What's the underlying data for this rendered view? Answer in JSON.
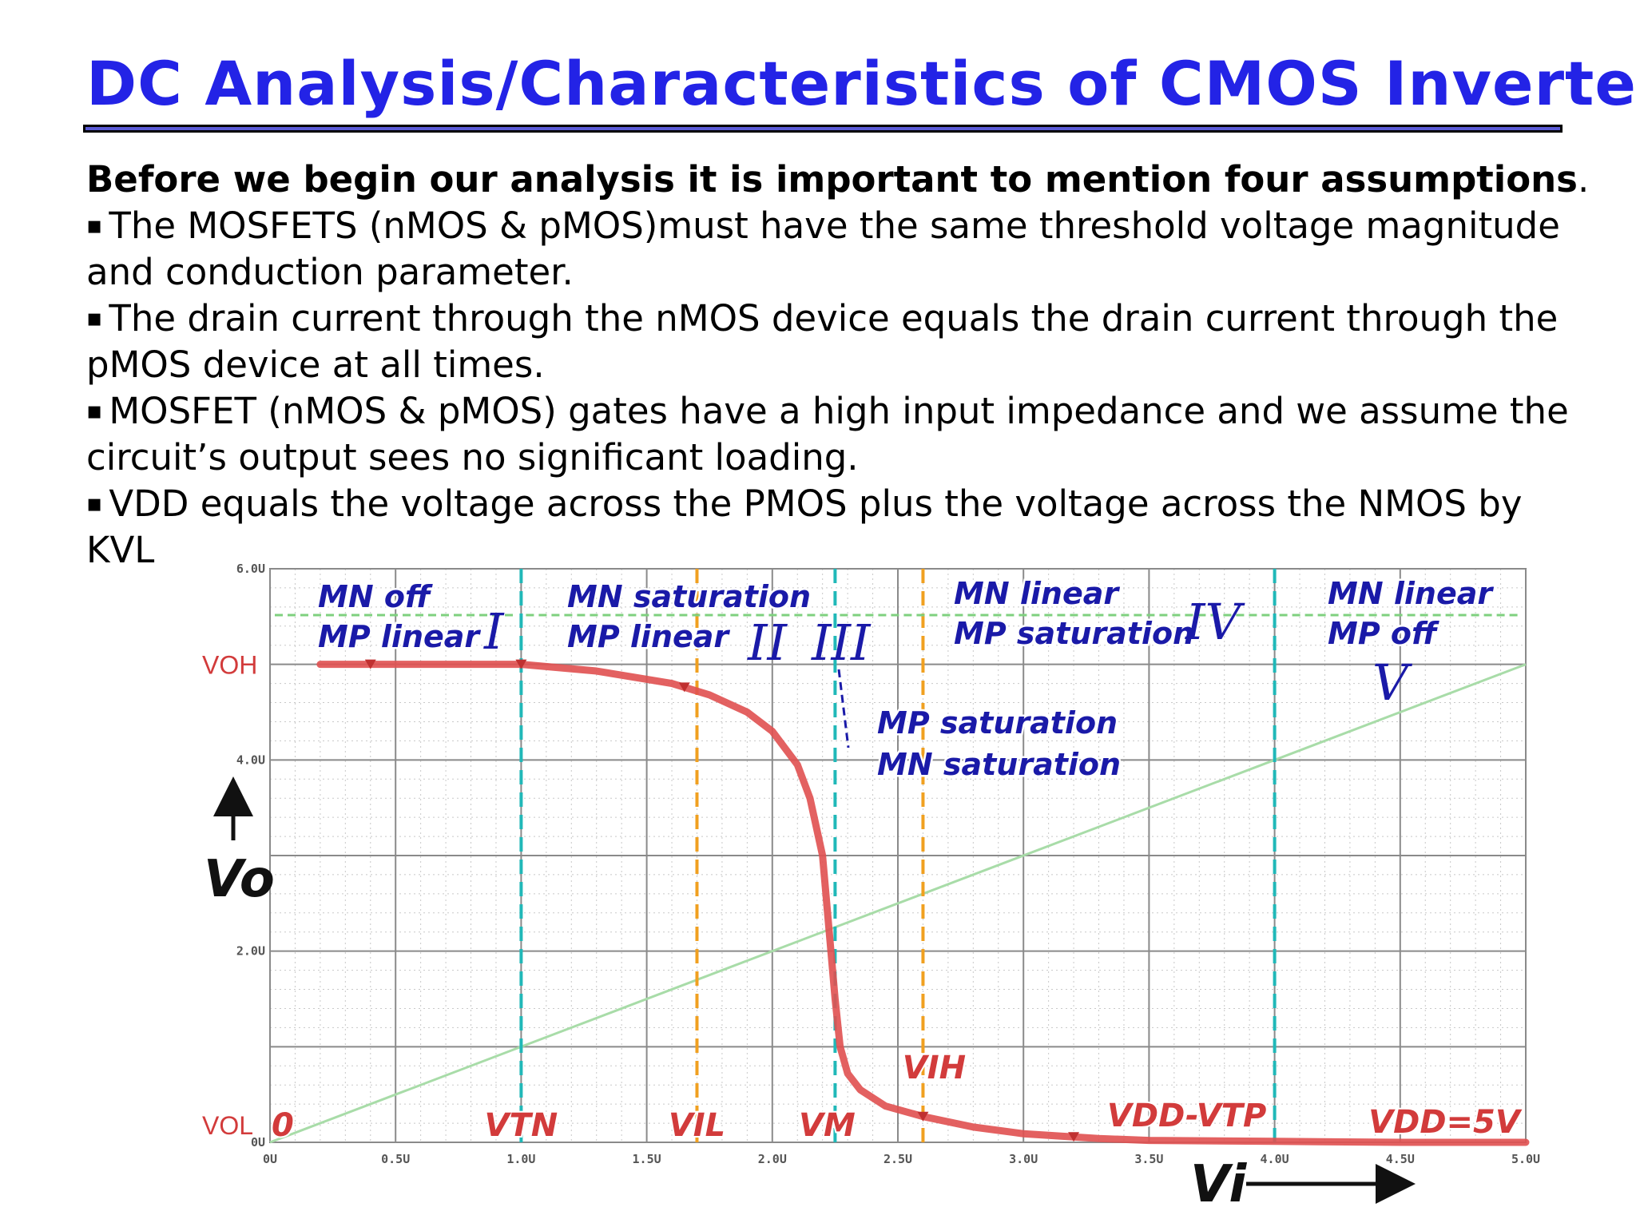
{
  "page": {
    "title": "DC Analysis/Characteristics of CMOS Inverter",
    "intro": "Before we begin our analysis it is important to mention four assumptions",
    "intro_end": ".",
    "bullet_symbol": "▪",
    "bullets": [
      "The MOSFETS (nMOS & pMOS)must have the same threshold voltage magnitude and conduction parameter.",
      "The drain current through the nMOS device equals the drain current through the pMOS device at all times.",
      "MOSFET (nMOS & pMOS) gates have a high input impedance and we assume the circuit’s output sees no significant loading.",
      "VDD equals the voltage across the PMOS plus the voltage across the NMOS by KVL"
    ]
  },
  "chart_data": {
    "type": "line",
    "xlim": [
      0,
      5
    ],
    "ylim": [
      0,
      6
    ],
    "x_tick_labels": [
      "0U",
      "0.5U",
      "1.0U",
      "1.5U",
      "2.0U",
      "2.5U",
      "3.0U",
      "3.5U",
      "4.0U",
      "4.5U",
      "5.0U"
    ],
    "y_tick_labels": [
      "0U",
      "2.0U",
      "4.0U",
      "6.0U"
    ],
    "x_label": "Vi",
    "y_label": "Vo",
    "series": [
      {
        "name": "Vo",
        "color": "#e05050",
        "x": [
          0.2,
          0.5,
          1.0,
          1.3,
          1.6,
          1.75,
          1.9,
          2.0,
          2.1,
          2.15,
          2.2,
          2.22,
          2.25,
          2.27,
          2.3,
          2.35,
          2.45,
          2.6,
          2.8,
          3.0,
          3.3,
          3.5,
          4.0,
          4.5,
          5.0
        ],
        "y": [
          5.0,
          5.0,
          5.0,
          4.93,
          4.8,
          4.68,
          4.5,
          4.3,
          3.95,
          3.6,
          3.0,
          2.4,
          1.5,
          1.0,
          0.72,
          0.55,
          0.38,
          0.27,
          0.16,
          0.09,
          0.04,
          0.02,
          0.01,
          0.0,
          0.0
        ]
      },
      {
        "name": "Vi",
        "color": "#a8dca8",
        "x": [
          0,
          5
        ],
        "y": [
          0,
          5
        ]
      }
    ],
    "vertical_markers": [
      {
        "label": "VTN",
        "x": 1.0,
        "color": "#20b8b8"
      },
      {
        "label": "VIL",
        "x": 1.7,
        "color": "#f0a020"
      },
      {
        "label": "VM",
        "x": 2.25,
        "color": "#20b8b8"
      },
      {
        "label": "VIH",
        "x": 2.6,
        "color": "#f0a020"
      },
      {
        "label": "VDD-VTP",
        "x": 4.0,
        "color": "#20b8b8"
      }
    ],
    "level_labels": {
      "voh": "VOH",
      "vol": "VOL",
      "origin": "0",
      "vdd": "VDD=5V"
    },
    "regions": [
      {
        "line1": "MN off",
        "line2": "MP linear",
        "roman": "I"
      },
      {
        "line1": "MN saturation",
        "line2": "MP linear",
        "roman": "II"
      },
      {
        "line1": "MP saturation",
        "line2": "MN saturation",
        "roman": "III"
      },
      {
        "line1": "MN linear",
        "line2": "MP saturation",
        "roman": "IV"
      },
      {
        "line1": "MN linear",
        "line2": "MP off",
        "roman": "V"
      }
    ],
    "grid": true,
    "colors": {
      "curve": "#e05050",
      "region_text": "#1a1aa8",
      "marker_cyan": "#20b8b8",
      "marker_orange": "#f0a020",
      "title": "#2323e6"
    }
  }
}
